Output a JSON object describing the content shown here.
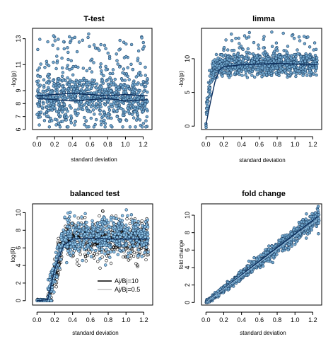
{
  "figure": {
    "panels": [
      "ttest",
      "limma",
      "balanced",
      "foldchange"
    ]
  },
  "colors": {
    "point_fill": "#74a9cf",
    "point_stroke": "#1c3f63",
    "trend_dark": "#0b2d5c",
    "trend_light": "#9fc3de",
    "balanced_hollow": "#000000",
    "balanced_fill": "#8ec3e6",
    "balanced_line2": "#c0c0c0"
  },
  "chart_data": [
    {
      "id": "ttest",
      "type": "scatter",
      "title": "T-test",
      "xlabel": "standard deviation",
      "ylabel": "-log(p)",
      "xlim": [
        -0.05,
        1.3
      ],
      "ylim": [
        6,
        13.8
      ],
      "xticks": [
        "0.0",
        "0.2",
        "0.4",
        "0.6",
        "0.8",
        "1.0",
        "1.2"
      ],
      "yticks": [
        "6",
        "7",
        "8",
        "9",
        "11",
        "13"
      ],
      "ytick_values": [
        6,
        7,
        8,
        9,
        11,
        13
      ],
      "series": [
        {
          "style": "scatter",
          "n_points": 900,
          "x_range": [
            0.0,
            1.25
          ],
          "y_center": 8.5,
          "y_spread": [
            6.2,
            13.5
          ]
        },
        {
          "style": "trend",
          "x": [
            0.0,
            0.2,
            0.4,
            0.6,
            0.8,
            1.0,
            1.25
          ],
          "y": [
            8.6,
            8.7,
            8.8,
            8.7,
            8.6,
            8.7,
            8.6
          ]
        },
        {
          "style": "trend",
          "x": [
            0.0,
            0.2,
            0.4,
            0.6,
            0.8,
            1.0,
            1.25
          ],
          "y": [
            8.4,
            8.3,
            8.2,
            8.3,
            8.4,
            8.2,
            8.3
          ]
        }
      ]
    },
    {
      "id": "limma",
      "type": "scatter",
      "title": "limma",
      "xlabel": "standard deviation",
      "ylabel": "-log(p)",
      "xlim": [
        -0.05,
        1.3
      ],
      "ylim": [
        -0.5,
        14.5
      ],
      "xticks": [
        "0.0",
        "0.2",
        "0.4",
        "0.6",
        "0.8",
        "1.0",
        "1.2"
      ],
      "yticks": [
        "0",
        "5",
        "10"
      ],
      "ytick_values": [
        0,
        5,
        10
      ],
      "series": [
        {
          "style": "scatter",
          "n_points": 900,
          "x_range": [
            0.0,
            1.25
          ],
          "plateau": 9.2,
          "rise_end": 0.15,
          "y_spread": [
            6.3,
            14.2
          ]
        },
        {
          "style": "trend",
          "x": [
            0.0,
            0.05,
            0.1,
            0.15,
            0.2,
            0.4,
            0.6,
            0.8,
            1.0,
            1.25
          ],
          "y": [
            0.2,
            3.5,
            6.5,
            8.3,
            8.8,
            9.1,
            9.2,
            9.3,
            9.2,
            9.1
          ]
        }
      ]
    },
    {
      "id": "balanced",
      "type": "scatter",
      "title": "balanced test",
      "xlabel": "standard deviation",
      "ylabel": "log(R)",
      "xlim": [
        -0.05,
        1.3
      ],
      "ylim": [
        -0.5,
        11
      ],
      "xticks": [
        "0.0",
        "0.2",
        "0.4",
        "0.6",
        "0.8",
        "1.0",
        "1.2"
      ],
      "yticks": [
        "0",
        "2",
        "4",
        "6",
        "8",
        "10"
      ],
      "ytick_values": [
        0,
        2,
        4,
        6,
        8,
        10
      ],
      "legend": {
        "position": "bottom-right",
        "entries": [
          {
            "label": "Aj/Bj=10",
            "color": "#000000"
          },
          {
            "label": "Aj/Bj=0.5",
            "color": "#c0c0c0"
          }
        ]
      },
      "series": [
        {
          "style": "scatter",
          "name": "Aj/Bj=10",
          "n_points": 700,
          "x_range": [
            0.0,
            1.25
          ],
          "plateau": 7.0,
          "flat_until": 0.12,
          "rise_end": 0.3,
          "y_spread": [
            3.5,
            10.2
          ]
        },
        {
          "style": "scatter",
          "name": "Aj/Bj=0.5",
          "n_points": 700,
          "x_range": [
            0.0,
            1.25
          ],
          "plateau": 7.4,
          "flat_until": 0.12,
          "rise_end": 0.3,
          "y_spread": [
            4.2,
            10.5
          ]
        },
        {
          "style": "trend",
          "x": [
            0.0,
            0.12,
            0.2,
            0.3,
            0.4,
            0.6,
            0.8,
            1.0,
            1.25
          ],
          "y": [
            0.0,
            0.1,
            3.6,
            6.3,
            7.0,
            7.1,
            7.0,
            7.0,
            7.0
          ]
        }
      ]
    },
    {
      "id": "foldchange",
      "type": "scatter",
      "title": "fold change",
      "xlabel": "standard deviation",
      "ylabel": "fold change",
      "xlim": [
        -0.05,
        1.3
      ],
      "ylim": [
        -0.3,
        11.3
      ],
      "xticks": [
        "0.0",
        "0.2",
        "0.4",
        "0.6",
        "0.8",
        "1.0",
        "1.2"
      ],
      "yticks": [
        "0",
        "2",
        "4",
        "6",
        "8",
        "10"
      ],
      "ytick_values": [
        0,
        2,
        4,
        6,
        8,
        10
      ],
      "series": [
        {
          "style": "scatter",
          "n_points": 900,
          "x_range": [
            0.0,
            1.27
          ],
          "slope": 7.8,
          "y_spread": [
            0,
            11
          ]
        },
        {
          "style": "trend",
          "x": [
            0.0,
            0.4,
            0.8,
            1.25
          ],
          "y": [
            0.0,
            3.15,
            6.3,
            9.8
          ]
        }
      ]
    }
  ]
}
